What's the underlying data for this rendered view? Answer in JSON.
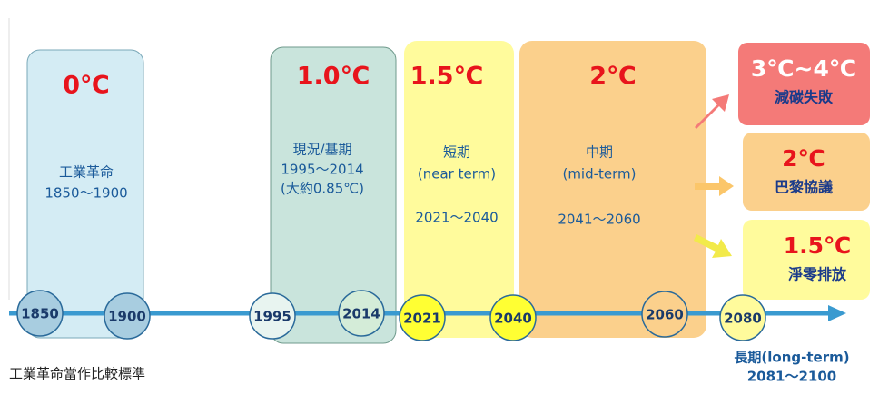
{
  "periods": [
    {
      "temperature": "0℃",
      "lines": [
        "工業革命",
        "1850～1900"
      ]
    },
    {
      "temperature": "1.0℃",
      "lines": [
        "現況/基期",
        "1995～2014",
        "(大約0.85℃)"
      ]
    },
    {
      "temperature": "1.5℃",
      "lines": [
        "短期",
        "(near term)",
        "2021～2040"
      ]
    },
    {
      "temperature": "2℃",
      "lines": [
        "中期",
        "(mid-term)",
        "2041～2060"
      ]
    }
  ],
  "outcomes": [
    {
      "temperature": "3℃~4℃",
      "label": "減碳失敗"
    },
    {
      "temperature": "2℃",
      "label": "巴黎協議"
    },
    {
      "temperature": "1.5℃",
      "label": "淨零排放"
    }
  ],
  "years": [
    "1850",
    "1900",
    "1995",
    "2014",
    "2021",
    "2040",
    "2060",
    "2080"
  ],
  "baseline_note": "工業革命當作比較標準",
  "long_term": {
    "label": "長期(long-term)",
    "range": "2081～2100"
  }
}
